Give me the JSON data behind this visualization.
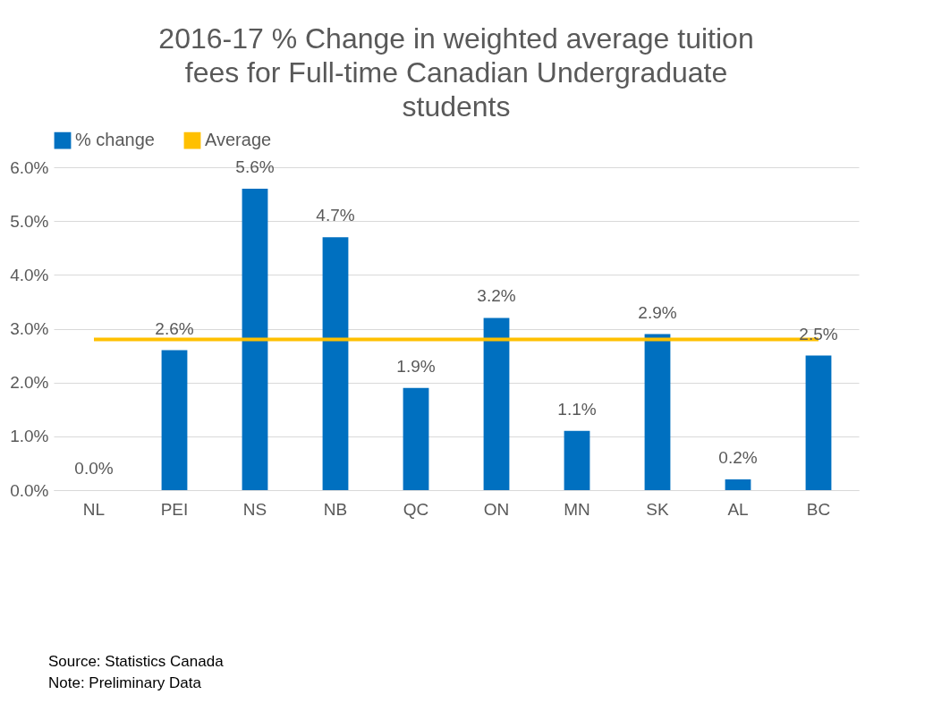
{
  "chart_data": {
    "type": "bar",
    "title": "2016-17 % Change in weighted average tuition fees for Full-time Canadian Undergraduate students",
    "categories": [
      "NL",
      "PEI",
      "NS",
      "NB",
      "QC",
      "ON",
      "MN",
      "SK",
      "AL",
      "BC"
    ],
    "series": [
      {
        "name": "% change",
        "color": "#0070c0",
        "values": [
          0.0,
          2.6,
          5.6,
          4.7,
          1.9,
          3.2,
          1.1,
          2.9,
          0.2,
          2.5
        ],
        "value_labels": [
          "0.0%",
          "2.6%",
          "5.6%",
          "4.7%",
          "1.9%",
          "3.2%",
          "1.1%",
          "2.9%",
          "0.2%",
          "2.5%"
        ]
      },
      {
        "name": "Average",
        "type": "line",
        "color": "#ffc000",
        "values": [
          2.8,
          2.8,
          2.8,
          2.8,
          2.8,
          2.8,
          2.8,
          2.8,
          2.8,
          2.8
        ]
      }
    ],
    "ylim": [
      0,
      6
    ],
    "yticks": [
      {
        "value": 0,
        "label": "0.0%"
      },
      {
        "value": 1,
        "label": "1.0%"
      },
      {
        "value": 2,
        "label": "2.0%"
      },
      {
        "value": 3,
        "label": "3.0%"
      },
      {
        "value": 4,
        "label": "4.0%"
      },
      {
        "value": 5,
        "label": "5.0%"
      },
      {
        "value": 6,
        "label": "6.0%"
      }
    ],
    "grid": "y",
    "legend": "top",
    "marker": "none",
    "annotations": [
      "Source: Statistics Canada",
      "Note: Preliminary Data"
    ]
  }
}
